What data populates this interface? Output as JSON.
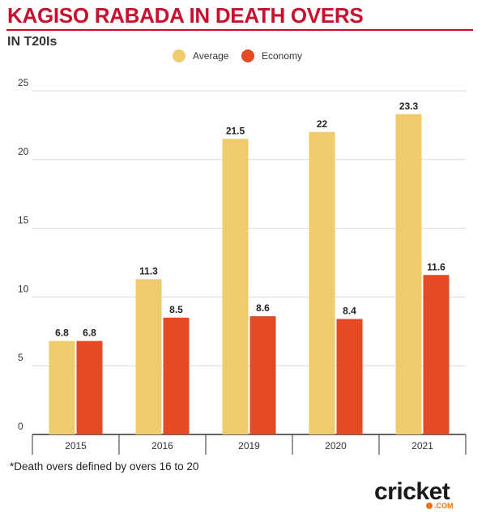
{
  "title": "KAGISO RABADA IN DEATH OVERS",
  "subtitle": "IN T20Is",
  "footnote": "*Death overs defined by overs 16 to 20",
  "logo": {
    "word": "cricket",
    "suffix": ".COM"
  },
  "colors": {
    "title": "#c8102e",
    "average": "#f0cb6b",
    "economy": "#e64a25"
  },
  "chart_data": {
    "type": "bar",
    "categories": [
      "2015",
      "2016",
      "2019",
      "2020",
      "2021"
    ],
    "series": [
      {
        "name": "Average",
        "values": [
          6.8,
          11.3,
          21.5,
          22,
          23.3
        ],
        "labels": [
          "6.8",
          "11.3",
          "21.5",
          "22",
          "23.3"
        ],
        "color": "#f0cb6b"
      },
      {
        "name": "Economy",
        "values": [
          6.8,
          8.5,
          8.6,
          8.4,
          11.6
        ],
        "labels": [
          "6.8",
          "8.5",
          "8.6",
          "8.4",
          "11.6"
        ],
        "color": "#e64a25"
      }
    ],
    "yticks": [
      "0",
      "5",
      "10",
      "15",
      "20",
      "25"
    ],
    "ylim": [
      0,
      25
    ],
    "grid": true,
    "legend": "top-center"
  }
}
